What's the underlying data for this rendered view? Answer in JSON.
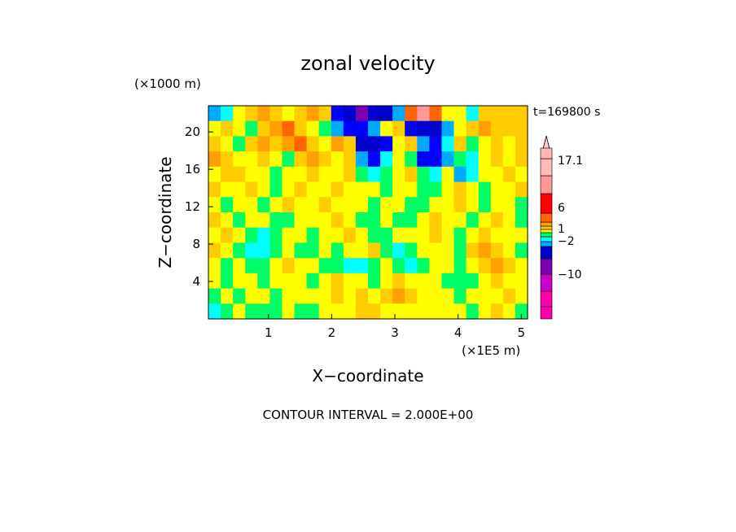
{
  "chart_data": {
    "type": "heatmap",
    "title": "zonal velocity",
    "xlabel": "X−coordinate",
    "ylabel": "Z−coordinate",
    "x_unit": "(×1E5 m)",
    "y_unit": "(×1000 m)",
    "time_label": "t=169800 s",
    "footer": "CONTOUR INTERVAL = 2.000E+00",
    "xlim": [
      0.05,
      5.1
    ],
    "ylim": [
      0.0,
      22.8
    ],
    "x_ticks": [
      1,
      2,
      3,
      4,
      5
    ],
    "y_ticks": [
      4,
      8,
      12,
      16,
      20
    ],
    "x_tick_labels": [
      "1",
      "2",
      "3",
      "4",
      "5"
    ],
    "y_tick_labels": [
      "4",
      "8",
      "12",
      "16",
      "20"
    ],
    "legend": {
      "placement": "right",
      "colors": [
        "#ff00aa",
        "#cc00cc",
        "#7a00b0",
        "#0000cc",
        "#00aaff",
        "#00ffff",
        "#00ff66",
        "#ffff00",
        "#ffcc00",
        "#ffa000",
        "#ff6600",
        "#ff0000",
        "#ff9999",
        "#ffbbbb",
        "#ffcccc"
      ],
      "labels": [
        "17.1",
        "6",
        "1",
        "−2",
        "−10"
      ]
    },
    "z_grid": [
      [
        -4,
        -2,
        2,
        4,
        6,
        4,
        2,
        4,
        6,
        4,
        -6,
        -12,
        -14,
        -12,
        -10,
        -4,
        8,
        12,
        8,
        2,
        2,
        -2,
        4,
        4,
        4,
        4
      ],
      [
        2,
        4,
        2,
        0,
        4,
        6,
        8,
        4,
        2,
        0,
        -4,
        -8,
        -6,
        -4,
        2,
        4,
        -8,
        -12,
        -10,
        -4,
        2,
        4,
        6,
        4,
        4,
        4
      ],
      [
        4,
        2,
        0,
        4,
        6,
        4,
        6,
        8,
        4,
        2,
        6,
        4,
        -10,
        -12,
        -6,
        2,
        4,
        -4,
        -6,
        -2,
        4,
        0,
        2,
        4,
        2,
        4
      ],
      [
        6,
        4,
        2,
        2,
        4,
        2,
        0,
        4,
        6,
        4,
        2,
        4,
        -4,
        -6,
        -2,
        2,
        0,
        -6,
        -8,
        -4,
        0,
        -2,
        2,
        4,
        2,
        4
      ],
      [
        2,
        4,
        4,
        2,
        2,
        0,
        2,
        2,
        4,
        2,
        2,
        4,
        0,
        -2,
        0,
        2,
        4,
        0,
        -2,
        2,
        -4,
        -2,
        2,
        2,
        4,
        2
      ],
      [
        4,
        2,
        2,
        4,
        2,
        0,
        2,
        4,
        2,
        2,
        4,
        2,
        2,
        2,
        0,
        2,
        2,
        0,
        0,
        2,
        4,
        2,
        0,
        2,
        2,
        4
      ],
      [
        2,
        0,
        2,
        2,
        0,
        2,
        4,
        2,
        2,
        4,
        2,
        2,
        2,
        0,
        2,
        2,
        0,
        0,
        2,
        2,
        4,
        2,
        0,
        2,
        2,
        0
      ],
      [
        4,
        2,
        0,
        2,
        2,
        0,
        0,
        2,
        2,
        2,
        4,
        2,
        0,
        0,
        2,
        0,
        0,
        2,
        4,
        2,
        2,
        0,
        2,
        4,
        2,
        0
      ],
      [
        2,
        4,
        2,
        0,
        -2,
        0,
        2,
        2,
        0,
        2,
        2,
        4,
        2,
        0,
        0,
        2,
        2,
        2,
        4,
        2,
        0,
        2,
        4,
        2,
        2,
        2
      ],
      [
        4,
        2,
        0,
        -2,
        -2,
        0,
        2,
        0,
        0,
        2,
        0,
        2,
        2,
        4,
        0,
        -2,
        0,
        2,
        2,
        2,
        0,
        4,
        6,
        4,
        2,
        0
      ],
      [
        2,
        0,
        2,
        0,
        0,
        2,
        4,
        2,
        2,
        0,
        0,
        -2,
        -2,
        0,
        2,
        0,
        -2,
        0,
        2,
        2,
        0,
        2,
        4,
        6,
        4,
        2
      ],
      [
        2,
        0,
        2,
        2,
        0,
        2,
        2,
        2,
        0,
        2,
        4,
        2,
        2,
        0,
        2,
        4,
        2,
        2,
        2,
        0,
        0,
        0,
        2,
        4,
        2,
        2
      ],
      [
        0,
        2,
        0,
        2,
        2,
        0,
        2,
        2,
        2,
        2,
        4,
        2,
        4,
        2,
        4,
        6,
        4,
        2,
        2,
        2,
        0,
        2,
        2,
        2,
        4,
        2
      ],
      [
        -2,
        0,
        2,
        0,
        0,
        0,
        2,
        0,
        0,
        2,
        2,
        2,
        4,
        4,
        2,
        2,
        2,
        2,
        2,
        2,
        2,
        0,
        2,
        4,
        2,
        0
      ]
    ]
  }
}
